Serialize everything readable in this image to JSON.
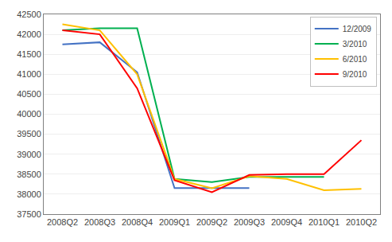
{
  "chart_data": {
    "type": "line",
    "categories": [
      "2008Q2",
      "2008Q3",
      "2008Q4",
      "2009Q1",
      "2009Q2",
      "2009Q3",
      "2009Q4",
      "2010Q1",
      "2010Q2"
    ],
    "series": [
      {
        "name": "12/2009",
        "color": "#4472C4",
        "values": [
          41750,
          41800,
          41050,
          38150,
          38150,
          38150,
          null,
          null,
          null
        ]
      },
      {
        "name": "3/2010",
        "color": "#00B050",
        "values": [
          42100,
          42150,
          42150,
          38380,
          38300,
          38430,
          38430,
          38430,
          null
        ]
      },
      {
        "name": "6/2010",
        "color": "#FFC000",
        "values": [
          42250,
          42100,
          41000,
          38380,
          38150,
          38450,
          38380,
          38100,
          38130
        ]
      },
      {
        "name": "9/2010",
        "color": "#FF0000",
        "values": [
          42100,
          42000,
          40650,
          38350,
          38050,
          38480,
          38500,
          38500,
          39350
        ]
      }
    ],
    "ylim": [
      37500,
      42500
    ],
    "yticks": [
      37500,
      38000,
      38500,
      39000,
      39500,
      40000,
      40500,
      41000,
      41500,
      42000,
      42500
    ],
    "grid": true,
    "legend": "upper right"
  }
}
